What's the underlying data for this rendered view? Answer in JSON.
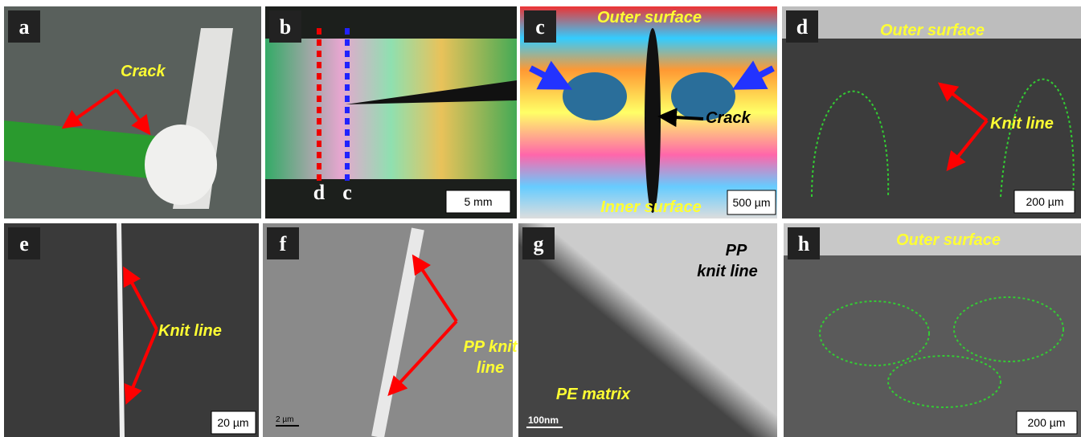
{
  "panels": [
    {
      "label": "a",
      "annotations": [
        "Crack"
      ]
    },
    {
      "label": "b",
      "markers": [
        "d",
        "c"
      ],
      "scale_bar": "5 mm"
    },
    {
      "label": "c",
      "annotations": [
        "Outer surface",
        "Crack",
        "Inner surface"
      ],
      "scale_bar": "500 µm"
    },
    {
      "label": "d",
      "annotations": [
        "Outer surface",
        "Knit line"
      ],
      "scale_bar": "200 µm"
    },
    {
      "label": "e",
      "annotations": [
        "Knit line"
      ],
      "scale_bar": "20 µm"
    },
    {
      "label": "f",
      "annotations": [
        "PP knit",
        "line"
      ],
      "scale_bar": "2 µm"
    },
    {
      "label": "g",
      "annotations": [
        "PP",
        "knit line",
        "PE matrix"
      ],
      "scale_bar": "100nm"
    },
    {
      "label": "h",
      "annotations": [
        "Outer surface"
      ],
      "scale_bar": "200 µm"
    }
  ]
}
